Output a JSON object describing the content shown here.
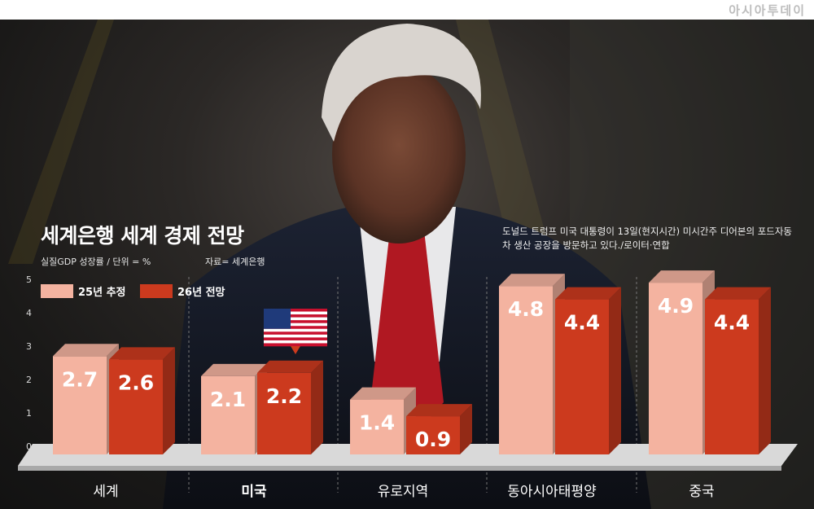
{
  "brand": "아시아투데이",
  "chart": {
    "title": "세계은행 세계 경제 전망",
    "subtitle": "실질GDP 성장률 / 단위 = %",
    "source": "자료= 세계은행",
    "caption": "도널드 트럼프 미국 대통령이 13일(현지시간) 미시간주 디어본의 포드자동차 생산 공장을 방문하고 있다./로이터·연합"
  },
  "legend": {
    "series1": "25년 추정",
    "series2": "26년 전망"
  },
  "colors": {
    "series1": "#f4b3a0",
    "series2": "#cc3a1e",
    "background": "#1f1d1c"
  },
  "icons": {
    "us_flag": "us-flag-icon"
  },
  "chart_data": {
    "type": "bar",
    "categories": [
      "세계",
      "미국",
      "유로지역",
      "동아시아태평양",
      "중국"
    ],
    "highlight_category": "미국",
    "series": [
      {
        "name": "25년 추정",
        "values": [
          2.7,
          2.1,
          1.4,
          4.8,
          4.9
        ]
      },
      {
        "name": "26년 전망",
        "values": [
          2.6,
          2.2,
          0.9,
          4.4,
          4.4
        ]
      }
    ],
    "ylim": [
      0,
      5
    ],
    "yticks": [
      "0",
      "1",
      "2",
      "3",
      "4",
      "5"
    ],
    "grid": true
  }
}
